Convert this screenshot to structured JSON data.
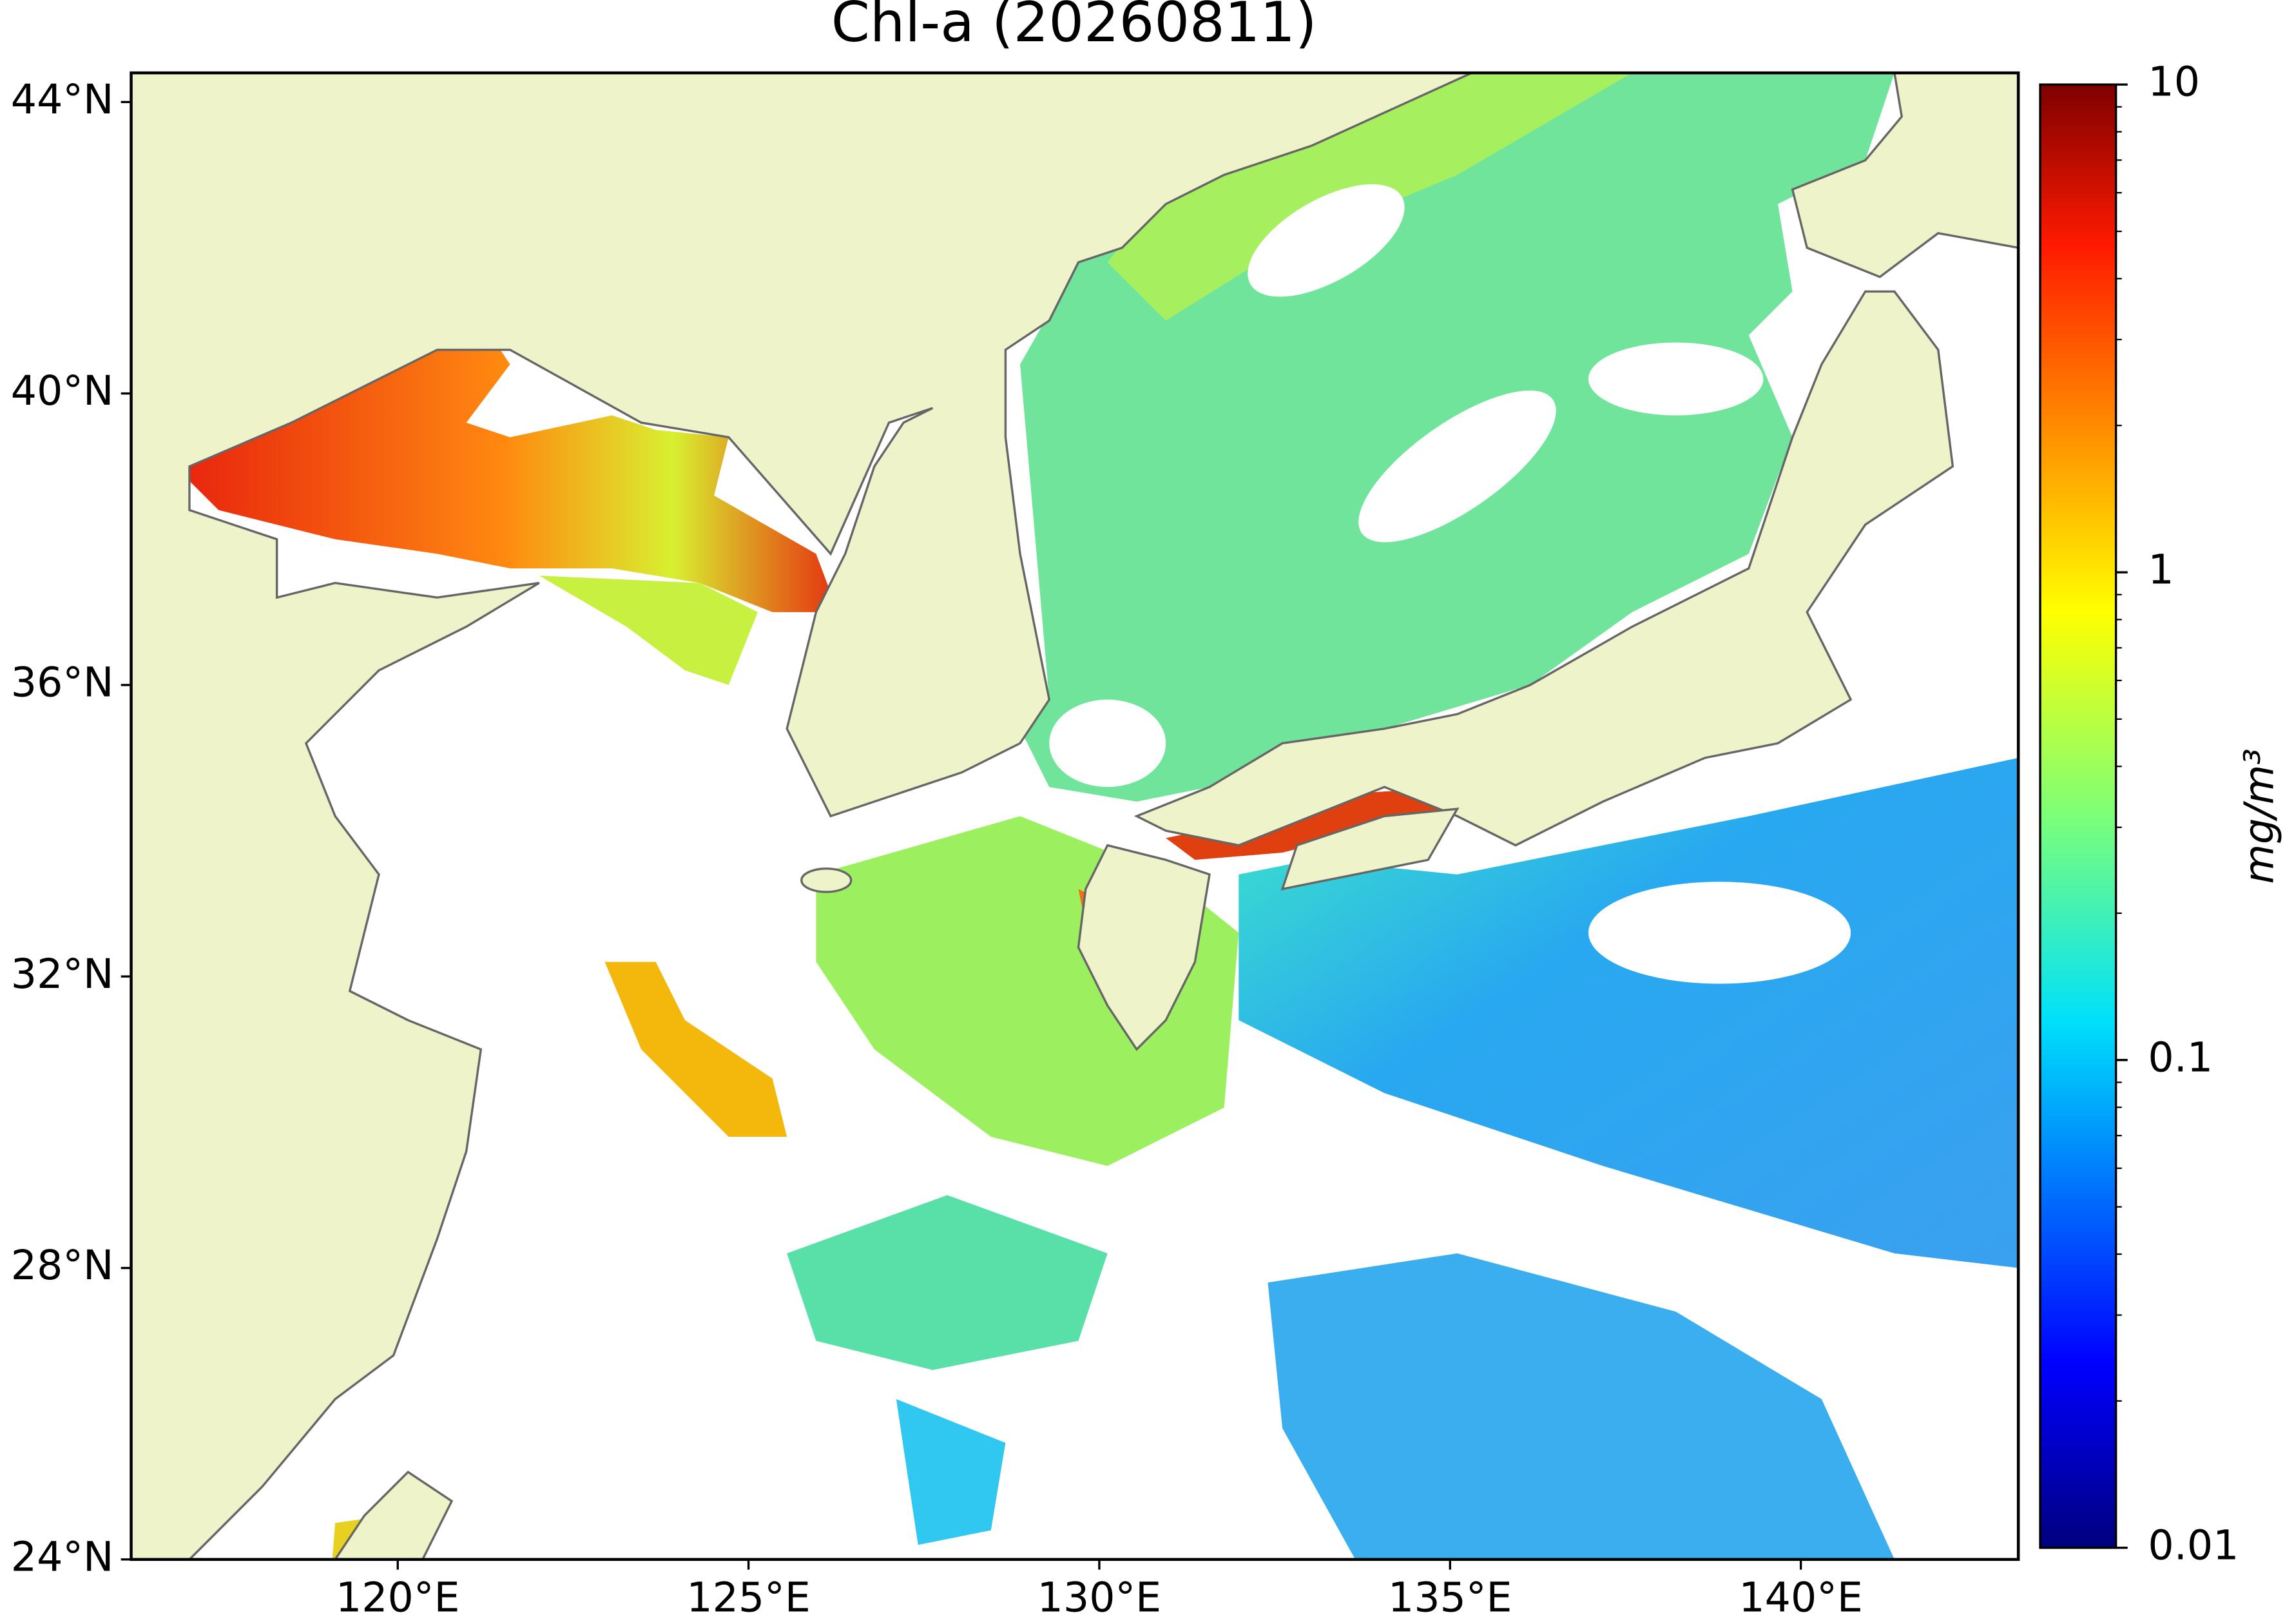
{
  "chart_data": {
    "type": "map",
    "title": "Chl-a (20260811)",
    "xlim": [
      116.2,
      143.1
    ],
    "ylim": [
      24,
      44.4
    ],
    "xticks": [
      {
        "value": 120,
        "label": "120°E"
      },
      {
        "value": 125,
        "label": "125°E"
      },
      {
        "value": 130,
        "label": "130°E"
      },
      {
        "value": 135,
        "label": "135°E"
      },
      {
        "value": 140,
        "label": "140°E"
      }
    ],
    "yticks": [
      {
        "value": 24,
        "label": "24°N"
      },
      {
        "value": 28,
        "label": "28°N"
      },
      {
        "value": 32,
        "label": "32°N"
      },
      {
        "value": 36,
        "label": "36°N"
      },
      {
        "value": 40,
        "label": "40°N"
      },
      {
        "value": 44,
        "label": "44°N"
      }
    ],
    "colorbar": {
      "label": "mg/m³",
      "lim": [
        0.01,
        10
      ],
      "ticks": [
        0.01,
        0.1,
        1,
        10
      ],
      "scale": "log"
    },
    "land_color": "#eff3c9"
  }
}
